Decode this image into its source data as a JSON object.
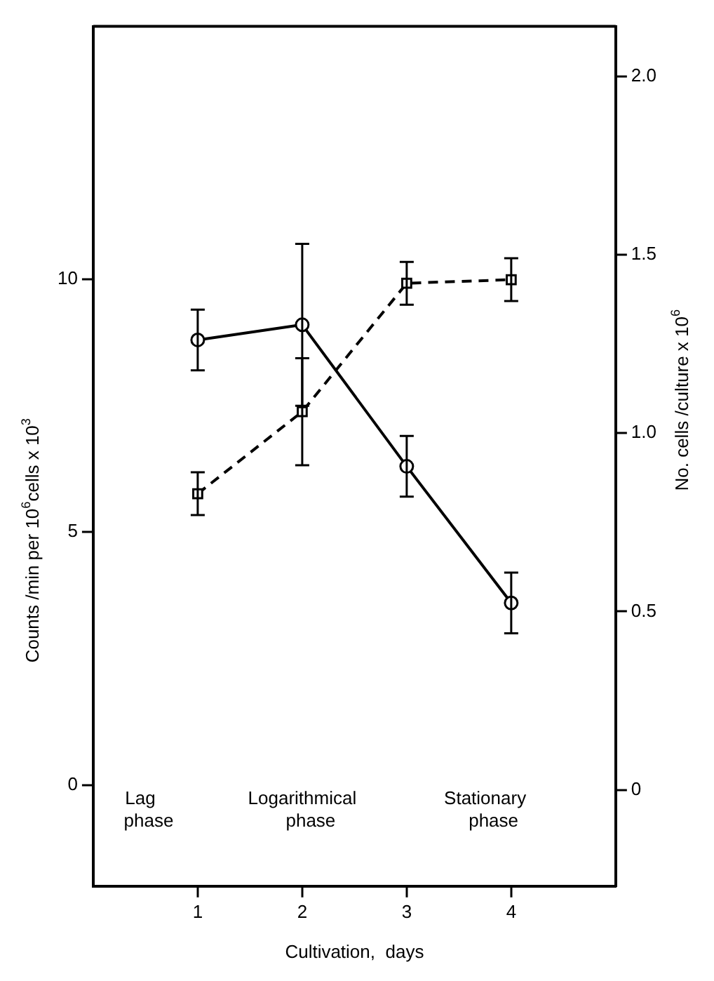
{
  "chart_data": {
    "type": "line",
    "xlabel": "Cultivation,  days",
    "ylabel": "Counts /min per 10$^{6}$cells x 10$^{3}$",
    "y2label": "No. cells /culture x 10$^{6}$",
    "x": [
      1,
      2,
      3,
      4
    ],
    "series": [
      {
        "color": "#000000",
        "marker": "circle",
        "line_style": "solid",
        "values": [
          8.8,
          9.1,
          6.3,
          3.6
        ],
        "errors": [
          0.6,
          1.6,
          0.6,
          0.6
        ]
      },
      {
        "color": "#000000",
        "marker": "square",
        "line_style": "dashed",
        "axis": "y2",
        "values": [
          0.83,
          1.06,
          1.42,
          1.43
        ],
        "errors": [
          0.06,
          0.15,
          0.06,
          0.06
        ]
      }
    ],
    "xlim": [
      0,
      5
    ],
    "xticks": [
      1,
      2,
      3,
      4
    ],
    "ylim": [
      -2,
      15
    ],
    "yticks": [
      0,
      5,
      10
    ],
    "y2lim": [
      -0.27,
      2.14
    ],
    "y2ticks": [
      0,
      0.5,
      {
        "value": 1,
        "label": "1.0"
      },
      1.5,
      {
        "value": 2,
        "label": "2.0"
      }
    ],
    "annotations": [
      "Lag\nphase",
      "Logarithmical\nphase",
      "Stationary\nphase"
    ],
    "grid": false,
    "legend": false
  }
}
